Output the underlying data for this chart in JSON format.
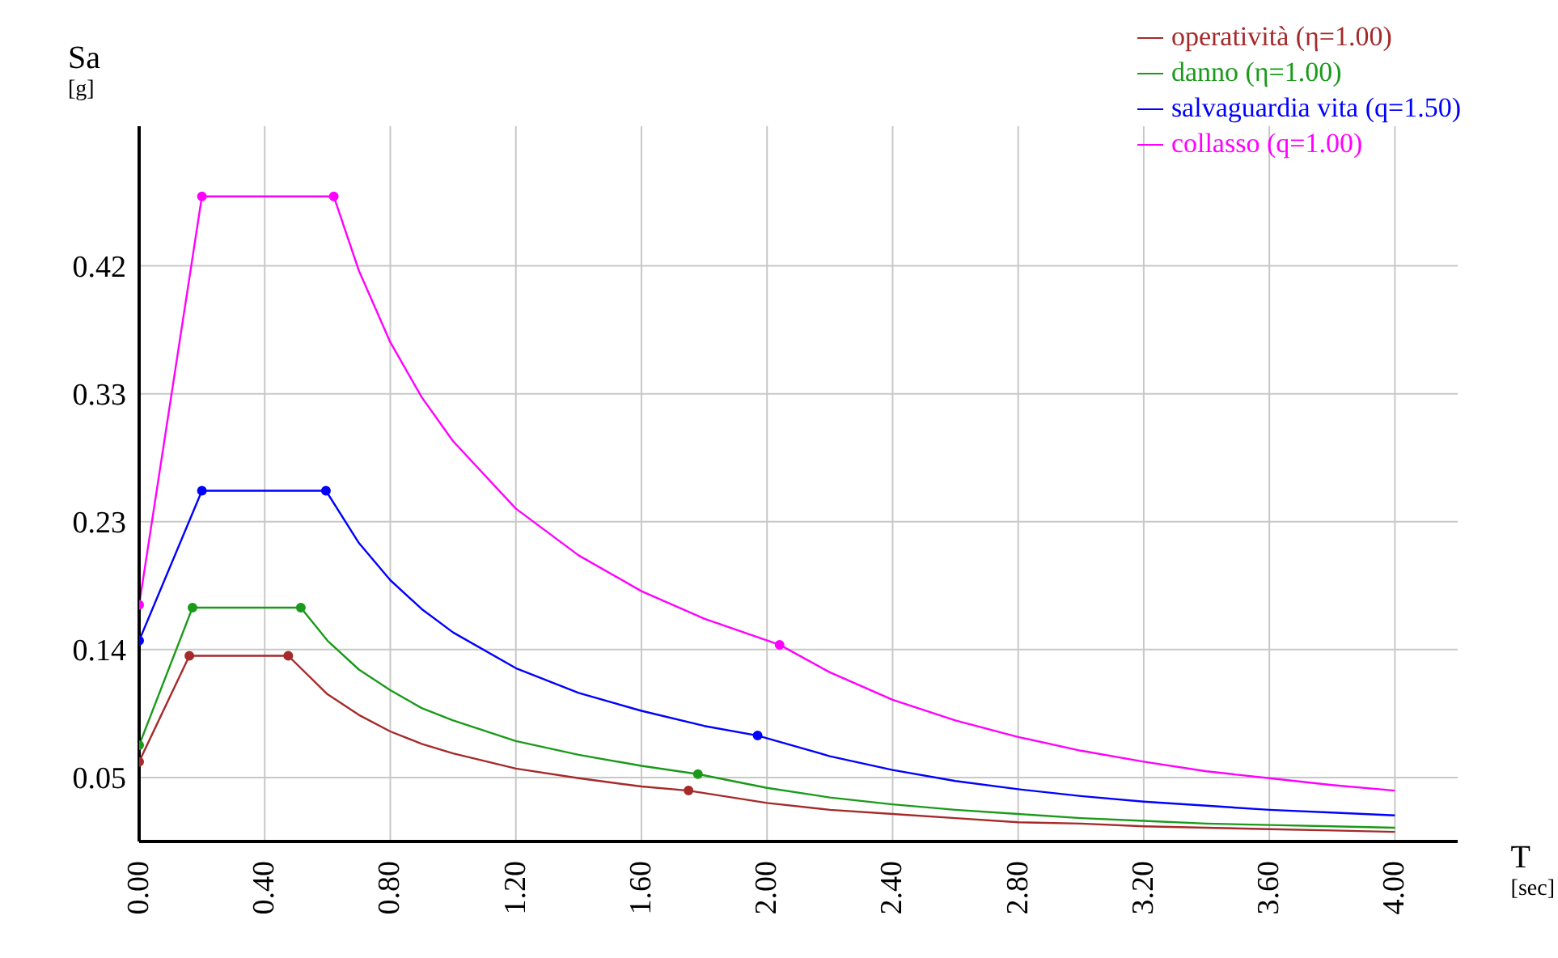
{
  "chart_data": {
    "type": "line",
    "ylabel": "Sa [g]",
    "xlabel": "T [sec]",
    "xlim": [
      0,
      4.2
    ],
    "xticks": [
      {
        "value": 0,
        "label": "0.00"
      },
      {
        "value": 0.4,
        "label": "0.40"
      },
      {
        "value": 0.8,
        "label": "0.80"
      },
      {
        "value": 1.2,
        "label": "1.20"
      },
      {
        "value": 1.6,
        "label": "1.60"
      },
      {
        "value": 2.0,
        "label": "2.00"
      },
      {
        "value": 2.4,
        "label": "2.40"
      },
      {
        "value": 2.8,
        "label": "2.80"
      },
      {
        "value": 3.2,
        "label": "3.20"
      },
      {
        "value": 3.6,
        "label": "3.60"
      },
      {
        "value": 4.0,
        "label": "4.00"
      }
    ],
    "ylim": [
      0,
      0.52
    ],
    "yticks": [
      {
        "value": 0.0465,
        "label": "0.05"
      },
      {
        "value": 0.1395,
        "label": "0.14"
      },
      {
        "value": 0.2325,
        "label": "0.23"
      },
      {
        "value": 0.3255,
        "label": "0.33"
      },
      {
        "value": 0.4185,
        "label": "0.42"
      }
    ],
    "grid": true,
    "legend": "top right",
    "marker": "none",
    "line_style": "solid",
    "series": [
      {
        "name": "operatività (η=1.00)",
        "color": "#a52a2a",
        "x": [
          0,
          0.16,
          0.475,
          0.6,
          0.7,
          0.8,
          0.9,
          1.0,
          1.2,
          1.4,
          1.6,
          1.75,
          2.0,
          2.2,
          2.4,
          2.6,
          2.8,
          3.0,
          3.2,
          3.4,
          3.6,
          3.8,
          4.0
        ],
        "values": [
          0.058,
          0.135,
          0.135,
          0.107,
          0.092,
          0.08,
          0.071,
          0.064,
          0.053,
          0.046,
          0.04,
          0.037,
          0.028,
          0.023,
          0.02,
          0.017,
          0.014,
          0.013,
          0.011,
          0.01,
          0.009,
          0.008,
          0.007
        ]
      },
      {
        "name": "danno (η=1.00)",
        "color": "#1a9a1a",
        "x": [
          0,
          0.17,
          0.515,
          0.6,
          0.7,
          0.8,
          0.9,
          1.0,
          1.2,
          1.4,
          1.6,
          1.78,
          2.0,
          2.2,
          2.4,
          2.6,
          2.8,
          3.0,
          3.2,
          3.4,
          3.6,
          3.8,
          4.0
        ],
        "values": [
          0.07,
          0.17,
          0.17,
          0.146,
          0.125,
          0.11,
          0.097,
          0.088,
          0.073,
          0.063,
          0.055,
          0.049,
          0.039,
          0.032,
          0.027,
          0.023,
          0.02,
          0.017,
          0.015,
          0.013,
          0.012,
          0.011,
          0.01
        ]
      },
      {
        "name": "salvaguardia vita (q=1.50)",
        "color": "#0000ff",
        "x": [
          0,
          0.2,
          0.595,
          0.7,
          0.8,
          0.9,
          1.0,
          1.2,
          1.4,
          1.6,
          1.8,
          1.97,
          2.2,
          2.4,
          2.6,
          2.8,
          3.0,
          3.2,
          3.4,
          3.6,
          3.8,
          4.0
        ],
        "values": [
          0.146,
          0.255,
          0.255,
          0.217,
          0.19,
          0.169,
          0.152,
          0.126,
          0.108,
          0.095,
          0.084,
          0.077,
          0.062,
          0.052,
          0.044,
          0.038,
          0.033,
          0.029,
          0.026,
          0.023,
          0.021,
          0.019
        ]
      },
      {
        "name": "collasso (q=1.00)",
        "color": "#ff00ff",
        "x": [
          0,
          0.2,
          0.62,
          0.7,
          0.8,
          0.9,
          1.0,
          1.2,
          1.4,
          1.6,
          1.8,
          2.04,
          2.2,
          2.4,
          2.6,
          2.8,
          3.0,
          3.2,
          3.4,
          3.6,
          3.8,
          4.0
        ],
        "values": [
          0.172,
          0.469,
          0.469,
          0.415,
          0.363,
          0.323,
          0.291,
          0.242,
          0.208,
          0.182,
          0.162,
          0.143,
          0.123,
          0.103,
          0.088,
          0.076,
          0.066,
          0.058,
          0.051,
          0.046,
          0.041,
          0.037
        ]
      },
      {
        "type": "scatter",
        "marker": "circle",
        "color": "#a52a2a",
        "x": [
          0,
          0.16,
          0.475,
          1.75
        ],
        "values": [
          0.058,
          0.135,
          0.135,
          0.037
        ]
      },
      {
        "type": "scatter",
        "marker": "circle",
        "color": "#1a9a1a",
        "x": [
          0,
          0.17,
          0.515,
          1.78
        ],
        "values": [
          0.07,
          0.17,
          0.17,
          0.049
        ]
      },
      {
        "type": "scatter",
        "marker": "circle",
        "color": "#0000ff",
        "x": [
          0,
          0.2,
          0.595,
          1.97
        ],
        "values": [
          0.146,
          0.255,
          0.255,
          0.077
        ]
      },
      {
        "type": "scatter",
        "marker": "circle",
        "color": "#ff00ff",
        "x": [
          0,
          0.2,
          0.62,
          2.04
        ],
        "values": [
          0.172,
          0.469,
          0.469,
          0.143
        ]
      }
    ]
  }
}
